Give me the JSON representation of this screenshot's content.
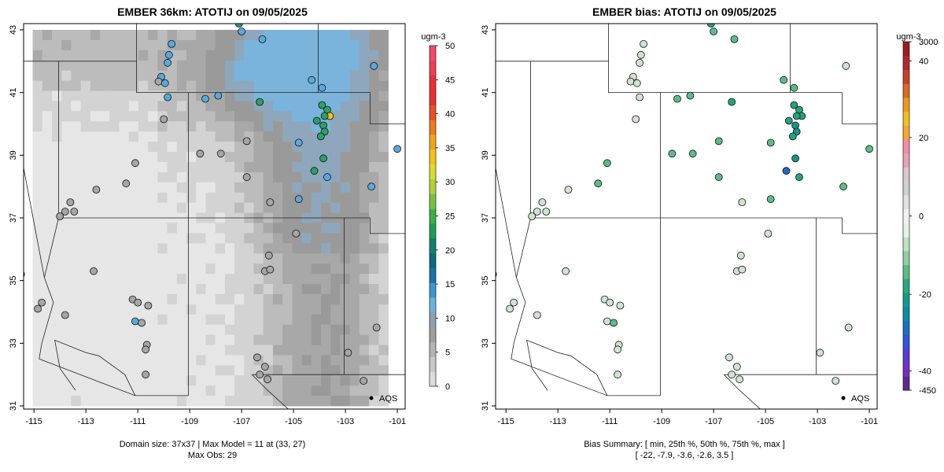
{
  "panels": {
    "model": {
      "title": "EMBER 36km: ATOTIJ on 09/05/2025",
      "units": "ugm-3",
      "legend_label": "AQS",
      "footer_line1": "Domain size: 37x37 | Max Model = 11 at (33, 27)",
      "footer_line2": "Max Obs: 29"
    },
    "bias": {
      "title": "EMBER bias: ATOTIJ on 09/05/2025",
      "units": "ugm-3",
      "legend_label": "AQS",
      "footer_line1": "Bias Summary: [ min, 25th %, 50th %, 75th %, max ]",
      "footer_line2": "[ -22,   -7.9,   -3.6,   -2.6,   3.5 ]"
    }
  },
  "chart_data": [
    {
      "type": "heatmap",
      "title": "EMBER 36km: ATOTIJ on 09/05/2025",
      "x_ticks": [
        "-115",
        "-113",
        "-111",
        "-109",
        "-107",
        "-105",
        "-103",
        "-101"
      ],
      "y_ticks": [
        "31",
        "33",
        "35",
        "37",
        "39",
        "41",
        "43"
      ],
      "xlim": [
        -115.4,
        -100.7
      ],
      "ylim": [
        30.9,
        43.2
      ],
      "colorbar": {
        "units": "ugm-3",
        "range": [
          0,
          50
        ],
        "ticks": [
          "0",
          "5",
          "10",
          "15",
          "20",
          "25",
          "30",
          "35",
          "40",
          "45",
          "50"
        ]
      },
      "colors": {
        "map_background": "#e3e3e3",
        "model_low": "#d4d4d4",
        "model_mid": "#9e9e9e",
        "model_high": "#7ab4dc",
        "obs_low": "#a6a6a6",
        "obs_mid": "#5aa8de",
        "obs_high": "#2e9e6b"
      },
      "legend": "AQS",
      "domain_size": "37x37",
      "max_model": 11,
      "max_model_location": [
        33,
        27
      ],
      "max_obs": 29
    },
    {
      "type": "scatter",
      "title": "EMBER bias: ATOTIJ on 09/05/2025",
      "x_ticks": [
        "-115",
        "-113",
        "-111",
        "-109",
        "-107",
        "-105",
        "-103",
        "-101"
      ],
      "y_ticks": [
        "31",
        "33",
        "35",
        "37",
        "39",
        "41",
        "43"
      ],
      "xlim": [
        -115.4,
        -100.7
      ],
      "ylim": [
        30.9,
        43.2
      ],
      "colorbar": {
        "units": "ugm-3",
        "ticks": [
          "-450",
          "-40",
          "-20",
          "0",
          "20",
          "40",
          "3000"
        ]
      },
      "colors": {
        "neg_low": "#b5d8b8",
        "neg_mid": "#47b07c",
        "neg_high": "#159a8c",
        "neg_extreme": "#1a5fb4"
      },
      "legend": "AQS",
      "bias_summary": {
        "min": -22,
        "p25": -7.9,
        "p50": -3.6,
        "p75": -2.6,
        "max": 3.5
      }
    }
  ]
}
